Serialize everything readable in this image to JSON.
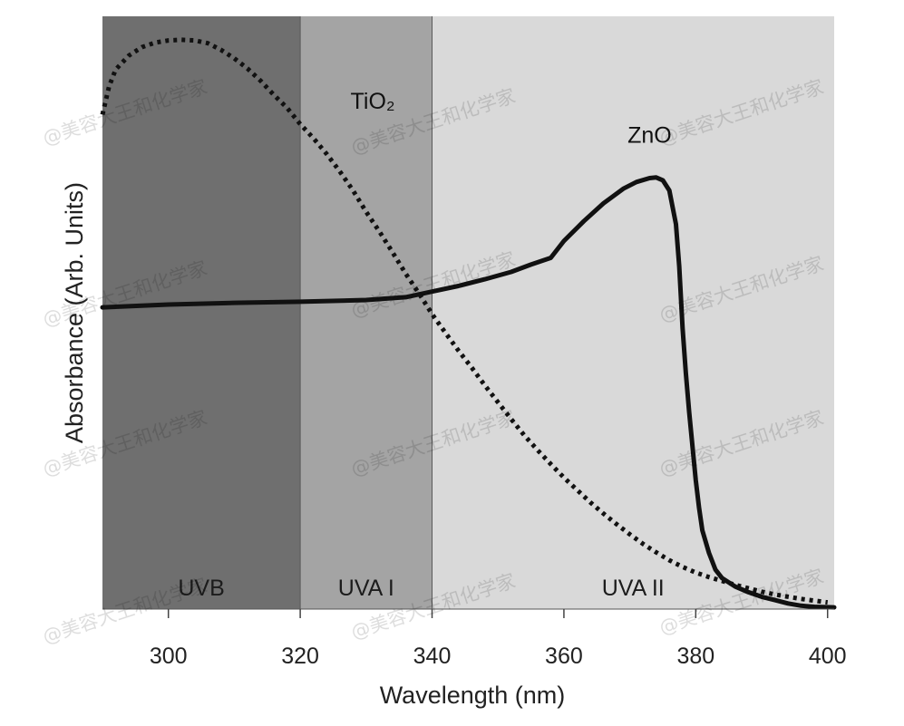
{
  "chart_data": {
    "type": "line",
    "xlabel": "Wavelength (nm)",
    "ylabel": "Absorbance (Arb. Units)",
    "xlim": [
      290,
      401
    ],
    "ylim": [
      0,
      1
    ],
    "x_ticks": [
      300,
      320,
      340,
      360,
      380,
      400
    ],
    "regions": [
      {
        "label": "UVB",
        "from": 290,
        "to": 320,
        "color": "#6f6f6f"
      },
      {
        "label": "UVA I",
        "from": 320,
        "to": 340,
        "color": "#a4a4a4"
      },
      {
        "label": "UVA II",
        "from": 340,
        "to": 401,
        "color": "#d9d9d9"
      }
    ],
    "series": [
      {
        "name": "TiO₂",
        "style": "dotted",
        "color": "#111111",
        "points": [
          [
            290,
            0.88
          ],
          [
            291,
            0.93
          ],
          [
            292,
            0.96
          ],
          [
            294,
            0.985
          ],
          [
            296,
            1.0
          ],
          [
            298,
            1.008
          ],
          [
            300,
            1.012
          ],
          [
            302,
            1.013
          ],
          [
            304,
            1.012
          ],
          [
            306,
            1.007
          ],
          [
            308,
            0.995
          ],
          [
            310,
            0.98
          ],
          [
            312,
            0.962
          ],
          [
            314,
            0.94
          ],
          [
            316,
            0.915
          ],
          [
            318,
            0.892
          ],
          [
            320,
            0.863
          ],
          [
            322,
            0.838
          ],
          [
            324,
            0.81
          ],
          [
            326,
            0.779
          ],
          [
            328,
            0.745
          ],
          [
            330,
            0.707
          ],
          [
            332,
            0.672
          ],
          [
            334,
            0.635
          ],
          [
            336,
            0.597
          ],
          [
            338,
            0.562
          ],
          [
            340,
            0.525
          ],
          [
            342,
            0.492
          ],
          [
            344,
            0.46
          ],
          [
            346,
            0.43
          ],
          [
            348,
            0.398
          ],
          [
            350,
            0.368
          ],
          [
            352,
            0.338
          ],
          [
            354,
            0.309
          ],
          [
            356,
            0.283
          ],
          [
            358,
            0.258
          ],
          [
            360,
            0.234
          ],
          [
            362,
            0.212
          ],
          [
            364,
            0.19
          ],
          [
            366,
            0.17
          ],
          [
            368,
            0.151
          ],
          [
            370,
            0.133
          ],
          [
            372,
            0.116
          ],
          [
            374,
            0.101
          ],
          [
            376,
            0.087
          ],
          [
            378,
            0.075
          ],
          [
            380,
            0.065
          ],
          [
            382,
            0.057
          ],
          [
            384,
            0.05
          ],
          [
            386,
            0.043
          ],
          [
            388,
            0.037
          ],
          [
            390,
            0.031
          ],
          [
            392,
            0.026
          ],
          [
            394,
            0.022
          ],
          [
            396,
            0.018
          ],
          [
            398,
            0.015
          ],
          [
            400,
            0.012
          ]
        ]
      },
      {
        "name": "ZnO",
        "style": "solid",
        "color": "#111111",
        "points": [
          [
            290,
            0.537
          ],
          [
            300,
            0.542
          ],
          [
            310,
            0.545
          ],
          [
            320,
            0.547
          ],
          [
            330,
            0.55
          ],
          [
            336,
            0.555
          ],
          [
            340,
            0.565
          ],
          [
            344,
            0.575
          ],
          [
            348,
            0.587
          ],
          [
            352,
            0.6
          ],
          [
            355,
            0.613
          ],
          [
            358,
            0.625
          ],
          [
            360,
            0.655
          ],
          [
            363,
            0.69
          ],
          [
            366,
            0.722
          ],
          [
            369,
            0.748
          ],
          [
            371,
            0.76
          ],
          [
            373,
            0.767
          ],
          [
            374,
            0.768
          ],
          [
            375,
            0.763
          ],
          [
            376,
            0.745
          ],
          [
            377,
            0.685
          ],
          [
            377.5,
            0.61
          ],
          [
            378,
            0.5
          ],
          [
            378.5,
            0.42
          ],
          [
            379,
            0.35
          ],
          [
            379.5,
            0.29
          ],
          [
            380,
            0.23
          ],
          [
            380.5,
            0.18
          ],
          [
            381,
            0.14
          ],
          [
            382,
            0.1
          ],
          [
            383,
            0.07
          ],
          [
            384,
            0.055
          ],
          [
            386,
            0.04
          ],
          [
            388,
            0.03
          ],
          [
            390,
            0.022
          ],
          [
            392,
            0.016
          ],
          [
            394,
            0.01
          ],
          [
            396,
            0.006
          ],
          [
            398,
            0.004
          ],
          [
            401,
            0.003
          ]
        ]
      }
    ],
    "annotations": [
      {
        "text": "TiO₂",
        "x": 331,
        "y": 0.89
      },
      {
        "text": "ZnO",
        "x": 373,
        "y": 0.83
      }
    ]
  },
  "watermark": {
    "text": "@美容大王和化学家"
  }
}
